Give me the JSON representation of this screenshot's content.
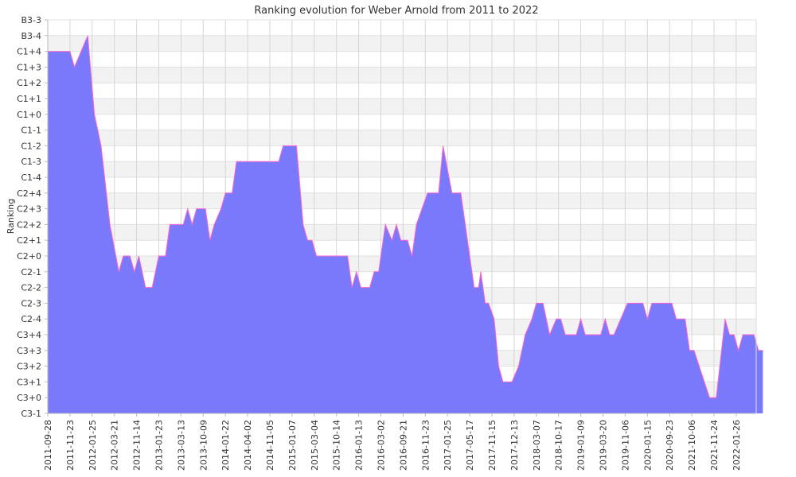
{
  "chart_data": {
    "type": "area",
    "title": "Ranking evolution for Weber Arnold from 2011 to 2022",
    "xlabel": "",
    "ylabel": "Ranking",
    "y_levels": [
      "C3-1",
      "C3+0",
      "C3+1",
      "C3+2",
      "C3+3",
      "C3+4",
      "C2-4",
      "C2-3",
      "C2-2",
      "C2-1",
      "C2+0",
      "C2+1",
      "C2+2",
      "C2+3",
      "C2+4",
      "C1-4",
      "C1-3",
      "C1-2",
      "C1-1",
      "C1+0",
      "C1+1",
      "C1+2",
      "C1+3",
      "C1+4",
      "B3-4",
      "B3-3"
    ],
    "x_tick_labels": [
      "2011-09-28",
      "2011-11-23",
      "2012-01-25",
      "2012-03-21",
      "2012-11-14",
      "2013-01-23",
      "2013-03-13",
      "2013-10-09",
      "2014-01-22",
      "2014-04-02",
      "2014-11-05",
      "2015-01-07",
      "2015-03-04",
      "2015-10-14",
      "2016-01-13",
      "2016-03-02",
      "2016-09-21",
      "2016-11-23",
      "2017-01-25",
      "2017-05-17",
      "2017-11-15",
      "2017-12-13",
      "2018-03-07",
      "2018-10-17",
      "2019-01-09",
      "2019-03-20",
      "2019-11-06",
      "2020-01-15",
      "2020-09-23",
      "2021-10-06",
      "2021-11-24",
      "2022-01-26"
    ],
    "series": [
      {
        "values": [
          [
            0,
            "C1+4"
          ],
          [
            1,
            "C1+4"
          ],
          [
            1.2,
            "C1+3"
          ],
          [
            1.8,
            "B3-4"
          ],
          [
            2.1,
            "C1+0"
          ],
          [
            2.4,
            "C1-2"
          ],
          [
            2.8,
            "C2+2"
          ],
          [
            3.2,
            "C2-1"
          ],
          [
            3.4,
            "C2+0"
          ],
          [
            3.7,
            "C2+0"
          ],
          [
            3.9,
            "C2-1"
          ],
          [
            4.1,
            "C2+0"
          ],
          [
            4.4,
            "C2-2"
          ],
          [
            4.7,
            "C2-2"
          ],
          [
            5.0,
            "C2+0"
          ],
          [
            5.3,
            "C2+0"
          ],
          [
            5.5,
            "C2+2"
          ],
          [
            6.1,
            "C2+2"
          ],
          [
            6.3,
            "C2+3"
          ],
          [
            6.5,
            "C2+2"
          ],
          [
            6.7,
            "C2+3"
          ],
          [
            7.1,
            "C2+3"
          ],
          [
            7.3,
            "C2+1"
          ],
          [
            7.5,
            "C2+2"
          ],
          [
            7.8,
            "C2+3"
          ],
          [
            8.0,
            "C2+4"
          ],
          [
            8.3,
            "C2+4"
          ],
          [
            8.5,
            "C1-3"
          ],
          [
            9.3,
            "C1-3"
          ],
          [
            10.0,
            "C1-3"
          ],
          [
            10.4,
            "C1-3"
          ],
          [
            10.6,
            "C1-2"
          ],
          [
            11.2,
            "C1-2"
          ],
          [
            11.5,
            "C2+2"
          ],
          [
            11.7,
            "C2+1"
          ],
          [
            11.9,
            "C2+1"
          ],
          [
            12.1,
            "C2+0"
          ],
          [
            12.8,
            "C2+0"
          ],
          [
            13.5,
            "C2+0"
          ],
          [
            13.7,
            "C2-2"
          ],
          [
            13.9,
            "C2-1"
          ],
          [
            14.1,
            "C2-2"
          ],
          [
            14.5,
            "C2-2"
          ],
          [
            14.7,
            "C2-1"
          ],
          [
            14.9,
            "C2-1"
          ],
          [
            15.2,
            "C2+2"
          ],
          [
            15.5,
            "C2+1"
          ],
          [
            15.7,
            "C2+2"
          ],
          [
            15.9,
            "C2+1"
          ],
          [
            16.2,
            "C2+1"
          ],
          [
            16.4,
            "C2+0"
          ],
          [
            16.6,
            "C2+2"
          ],
          [
            17.1,
            "C2+4"
          ],
          [
            17.6,
            "C2+4"
          ],
          [
            17.8,
            "C1-2"
          ],
          [
            18.2,
            "C2+4"
          ],
          [
            18.6,
            "C2+4"
          ],
          [
            19.2,
            "C2-2"
          ],
          [
            19.4,
            "C2-2"
          ],
          [
            19.5,
            "C2-1"
          ],
          [
            19.7,
            "C2-3"
          ],
          [
            19.85,
            "C2-3"
          ],
          [
            20.1,
            "C2-4"
          ],
          [
            20.3,
            "C3+2"
          ],
          [
            20.5,
            "C3+1"
          ],
          [
            20.9,
            "C3+1"
          ],
          [
            21.2,
            "C3+2"
          ],
          [
            21.5,
            "C3+4"
          ],
          [
            21.8,
            "C2-4"
          ],
          [
            22.0,
            "C2-3"
          ],
          [
            22.3,
            "C2-3"
          ],
          [
            22.6,
            "C3+4"
          ],
          [
            22.9,
            "C2-4"
          ],
          [
            23.1,
            "C2-4"
          ],
          [
            23.3,
            "C3+4"
          ],
          [
            23.8,
            "C3+4"
          ],
          [
            24.0,
            "C2-4"
          ],
          [
            24.2,
            "C3+4"
          ],
          [
            24.9,
            "C3+4"
          ],
          [
            25.1,
            "C2-4"
          ],
          [
            25.3,
            "C3+4"
          ],
          [
            25.5,
            "C3+4"
          ],
          [
            25.8,
            "C2-4"
          ],
          [
            26.1,
            "C2-3"
          ],
          [
            26.5,
            "C2-3"
          ],
          [
            26.8,
            "C2-3"
          ],
          [
            27.0,
            "C2-4"
          ],
          [
            27.2,
            "C2-3"
          ],
          [
            27.6,
            "C2-3"
          ],
          [
            28.1,
            "C2-3"
          ],
          [
            28.3,
            "C2-4"
          ],
          [
            28.7,
            "C2-4"
          ],
          [
            28.9,
            "C3+3"
          ],
          [
            29.1,
            "C3+3"
          ],
          [
            29.8,
            "C3+0"
          ],
          [
            30.1,
            "C3+0"
          ],
          [
            30.5,
            "C2-4"
          ],
          [
            30.7,
            "C3+4"
          ],
          [
            30.9,
            "C3+4"
          ],
          [
            31.1,
            "C3+3"
          ],
          [
            31.3,
            "C3+4"
          ],
          [
            31.8,
            "C3+4"
          ],
          [
            32.0,
            "C3+3"
          ],
          [
            32.2,
            "C3+3"
          ]
        ]
      }
    ],
    "colors": {
      "fill": "#7b79fb",
      "line": "#ff66cc",
      "band": "#f2f2f2",
      "grid": "#cccccc",
      "axis": "#bbbbbb"
    },
    "grid": true,
    "legend": "none"
  }
}
